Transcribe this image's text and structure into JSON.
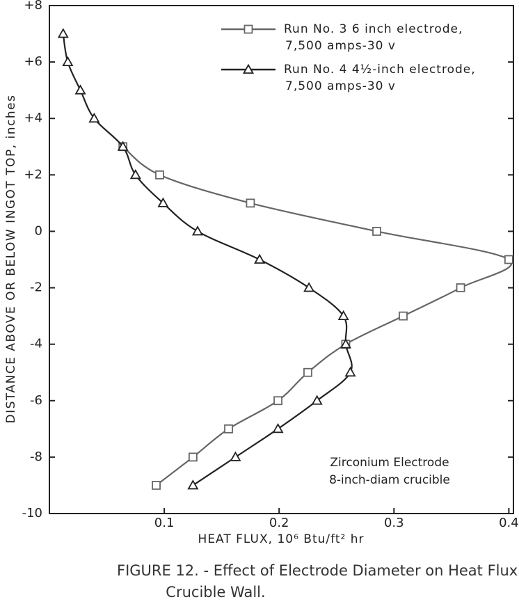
{
  "chart_data": {
    "type": "line",
    "x_label": "HEAT FLUX, 10⁶ Btu/ft² hr",
    "y_label": "DISTANCE ABOVE OR BELOW INGOT TOP, inches",
    "annotation": [
      "Zirconium Electrode",
      "8-inch-diam crucible"
    ],
    "caption": [
      "FIGURE 12. - Effect of Electrode Diameter on Heat Flux to",
      "Crucible Wall."
    ],
    "xlim": [
      0,
      0.404
    ],
    "ylim": [
      -10,
      8
    ],
    "xticks": [
      0.1,
      0.2,
      0.3,
      0.4
    ],
    "yticks": [
      -10,
      -8,
      -6,
      -4,
      -2,
      0,
      {
        "value": 2,
        "label": "+2"
      },
      {
        "value": 4,
        "label": "+4"
      },
      {
        "value": 6,
        "label": "+6"
      },
      {
        "value": 8,
        "label": "+8"
      }
    ],
    "legend": "upper right",
    "series": [
      {
        "name": [
          "Run No. 3 6 inch electrode,",
          "7,500 amps-30 v"
        ],
        "marker": "square",
        "color": "#666666",
        "x": [
          0.064,
          0.096,
          0.175,
          0.285,
          0.4,
          0.358,
          0.308,
          0.258,
          0.225,
          0.199,
          0.156,
          0.125,
          0.093
        ],
        "values": [
          3,
          2,
          1,
          0,
          -1,
          -2,
          -3,
          -4,
          -5,
          -6,
          -7,
          -8,
          -9
        ]
      },
      {
        "name": [
          "Run No. 4 4½-inch electrode,",
          "7,500 amps-30 v"
        ],
        "marker": "triangle",
        "color": "#222222",
        "x": [
          0.012,
          0.016,
          0.027,
          0.039,
          0.064,
          0.075,
          0.099,
          0.129,
          0.183,
          0.226,
          0.256,
          0.258,
          0.262,
          0.233,
          0.199,
          0.162,
          0.125
        ],
        "values": [
          7,
          6,
          5,
          4,
          3,
          2,
          1,
          0,
          -1,
          -2,
          -3,
          -4,
          -5,
          -6,
          -7,
          -8,
          -9
        ]
      }
    ]
  }
}
